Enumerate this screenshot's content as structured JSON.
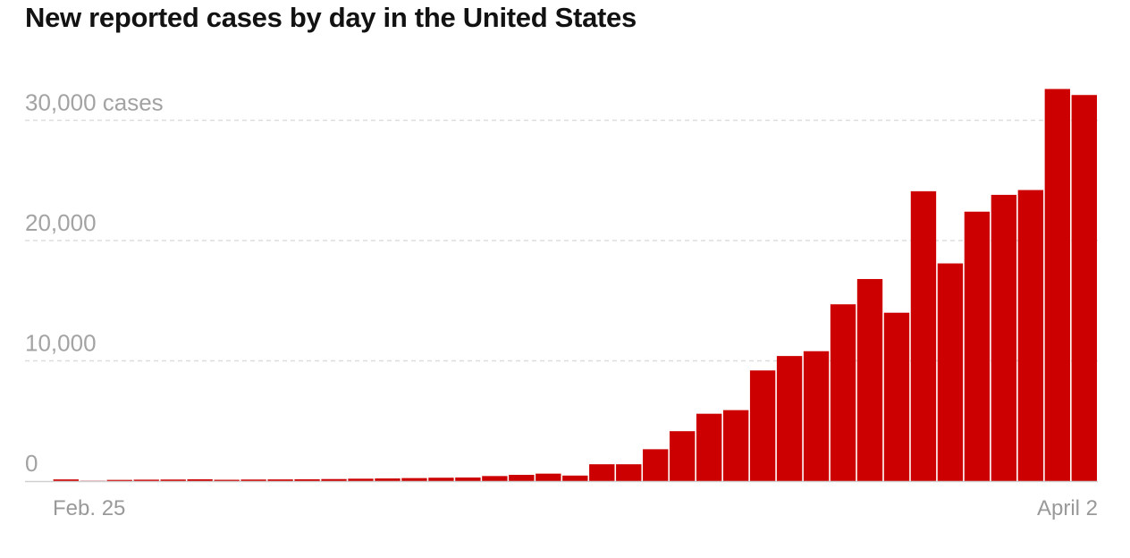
{
  "chart_data": {
    "type": "bar",
    "title": "New reported cases by day in the United States",
    "x_tick_labels": [
      "Feb. 25",
      "April 2"
    ],
    "y_tick_labels": [
      "0",
      "10,000",
      "20,000",
      "30,000 cases"
    ],
    "y_ticks": [
      0,
      10000,
      20000,
      30000
    ],
    "ylim": [
      0,
      33000
    ],
    "grid": true,
    "bar_color": "#cc0000",
    "values": [
      140,
      30,
      100,
      120,
      130,
      150,
      110,
      130,
      140,
      150,
      170,
      200,
      220,
      250,
      280,
      300,
      420,
      520,
      620,
      460,
      1400,
      1400,
      2650,
      4150,
      5600,
      5900,
      9200,
      10400,
      10800,
      14700,
      16800,
      14000,
      24100,
      18100,
      22400,
      23800,
      24200,
      32600,
      32100
    ]
  }
}
